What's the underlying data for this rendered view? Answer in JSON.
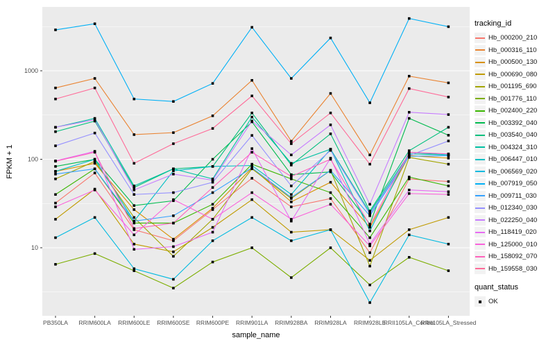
{
  "legend": {
    "tracking_title": "tracking_id",
    "quant_title": "quant_status",
    "quant_items": [
      {
        "label": "OK"
      }
    ]
  },
  "chart_data": {
    "type": "line",
    "title": "",
    "xlabel": "sample_name",
    "ylabel": "FPKM + 1",
    "y_scale": "log10",
    "grid": true,
    "legend_position": "right",
    "y_ticks": [
      10,
      100,
      1000
    ],
    "y_minor_ticks": [
      3.162,
      31.62,
      316.2,
      3162
    ],
    "ylim": [
      1.7,
      5250
    ],
    "point_color": "#000000",
    "panel_bg": "#EBEBEB",
    "grid_color": "#FFFFFF",
    "x": [
      "PB350LA",
      "RRIM600LA",
      "RRIM600LE",
      "RRIM600SE",
      "RRIM600PE",
      "RRIM901LA",
      "RRIM928BA",
      "RRIM928LA",
      "RRIM928LE",
      "RRII105LA_Control",
      "RRII105LA_Stressed"
    ],
    "series": [
      {
        "name": "Hb_000200_210",
        "color": "#F8766D",
        "values": [
          32,
          70,
          16,
          12,
          27,
          61,
          29,
          36,
          8.8,
          60,
          56
        ]
      },
      {
        "name": "Hb_000316_110",
        "color": "#EA8331",
        "values": [
          640,
          820,
          190,
          200,
          310,
          780,
          160,
          555,
          112,
          870,
          730
        ]
      },
      {
        "name": "Hb_000500_130",
        "color": "#D89000",
        "values": [
          73,
          90,
          27,
          12.5,
          28,
          80,
          33,
          55,
          17,
          110,
          103
        ]
      },
      {
        "name": "Hb_000690_080",
        "color": "#C09B00",
        "values": [
          21,
          46,
          11,
          9,
          17,
          35,
          15,
          16,
          7.2,
          16,
          22
        ]
      },
      {
        "name": "Hb_001195_690",
        "color": "#A3A500",
        "values": [
          60,
          95,
          22,
          8,
          21,
          78,
          36,
          75,
          6.2,
          105,
          88
        ]
      },
      {
        "name": "Hb_001776_110",
        "color": "#7CAE00",
        "values": [
          6.5,
          8.6,
          5.5,
          3.5,
          6.9,
          10,
          4.6,
          10,
          3.8,
          7.8,
          5.5
        ]
      },
      {
        "name": "Hb_002400_220",
        "color": "#39B600",
        "values": [
          40,
          78,
          19,
          19,
          31,
          88,
          60,
          42,
          13,
          63,
          50
        ]
      },
      {
        "name": "Hb_003392_040",
        "color": "#00BB4E",
        "values": [
          83,
          100,
          30,
          34,
          100,
          265,
          67,
          72,
          18.5,
          290,
          187
        ]
      },
      {
        "name": "Hb_003540_040",
        "color": "#00BF7D",
        "values": [
          205,
          270,
          48,
          78,
          83,
          334,
          86,
          194,
          26,
          125,
          230
        ]
      },
      {
        "name": "Hb_004324_310",
        "color": "#00C1A3",
        "values": [
          230,
          290,
          50,
          78,
          60,
          300,
          90,
          130,
          25,
          115,
          112
        ]
      },
      {
        "name": "Hb_006447_010",
        "color": "#00BFC4",
        "values": [
          73,
          100,
          20,
          74,
          83,
          85,
          40,
          130,
          15.5,
          120,
          112
        ]
      },
      {
        "name": "Hb_006569_020",
        "color": "#00BAE0",
        "values": [
          13,
          22,
          5.8,
          4.4,
          12,
          22,
          12,
          16,
          2.4,
          14,
          11
        ]
      },
      {
        "name": "Hb_007919_050",
        "color": "#00B0F6",
        "values": [
          2900,
          3400,
          480,
          450,
          720,
          3100,
          820,
          2350,
          435,
          3900,
          3150
        ]
      },
      {
        "name": "Hb_009711_030",
        "color": "#35A2FF",
        "values": [
          68,
          78,
          20,
          23,
          42,
          80,
          37,
          75,
          23,
          108,
          110
        ]
      },
      {
        "name": "Hb_012340_030",
        "color": "#9590FF",
        "values": [
          142,
          198,
          40,
          42,
          55,
          186,
          50,
          126,
          24,
          110,
          161
        ]
      },
      {
        "name": "Hb_022250_040",
        "color": "#C77CFF",
        "values": [
          230,
          280,
          45,
          68,
          58,
          271,
          112,
          245,
          31,
          340,
          320
        ]
      },
      {
        "name": "Hb_118419_020",
        "color": "#E76BF3",
        "values": [
          96,
          123,
          9.6,
          10.3,
          15,
          132,
          20,
          103,
          11,
          45,
          43
        ]
      },
      {
        "name": "Hb_125000_010",
        "color": "#FA62DB",
        "values": [
          29,
          45,
          14,
          35,
          21,
          42,
          21,
          31,
          10.5,
          41,
          40
        ]
      },
      {
        "name": "Hb_158092_070",
        "color": "#FF62BC",
        "values": [
          95,
          120,
          16.5,
          19,
          48,
          120,
          64,
          100,
          18,
          120,
          115
        ]
      },
      {
        "name": "Hb_159558_030",
        "color": "#FF6A98",
        "values": [
          480,
          640,
          90,
          150,
          223,
          520,
          150,
          334,
          88,
          630,
          505
        ]
      }
    ]
  }
}
